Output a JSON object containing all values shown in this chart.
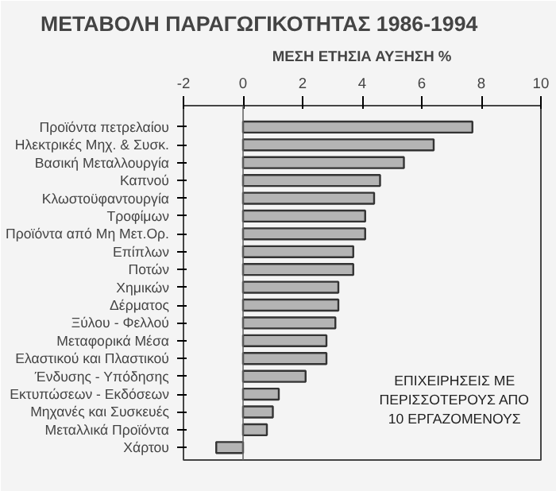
{
  "chart_data": {
    "type": "bar",
    "orientation": "horizontal",
    "title": "ΜΕΤΑΒΟΛΗ ΠΑΡΑΓΩΓΙΚΟΤΗΤΑΣ 1986-1994",
    "xlabel": "ΜΕΣΗ ΕΤΗΣΙΑ ΑΥΞΗΣΗ %",
    "categories": [
      "Προϊόντα πετρελαίου",
      "Ηλεκτρικές Μηχ. & Συσκ.",
      "Βασική Μεταλλουργία",
      "Καπνού",
      "Κλωστοϋφαντουργία",
      "Τροφίμων",
      "Προϊόντα από Μη Μετ.Ορ.",
      "Επίπλων",
      "Ποτών",
      "Χημικών",
      "Δέρματος",
      "Ξύλου - Φελλού",
      "Μεταφορικά Μέσα",
      "Ελαστικού και Πλαστικού",
      "Ένδυσης - Υπόδησης",
      "Εκτυπώσεων - Εκδόσεων",
      "Μηχανές και Συσκευές",
      "Μεταλλικά Προϊόντα",
      "Χάρτου"
    ],
    "values": [
      7.7,
      6.4,
      5.4,
      4.6,
      4.4,
      4.1,
      4.1,
      3.7,
      3.7,
      3.2,
      3.2,
      3.1,
      2.8,
      2.8,
      2.1,
      1.2,
      1.0,
      0.8,
      -0.9
    ],
    "color": "#b4b4b4",
    "xlim": [
      -2,
      10
    ],
    "xticks": [
      -2,
      0,
      2,
      4,
      6,
      8,
      10
    ],
    "grid": false,
    "ref_lines": [
      {
        "axis": "x",
        "value": 0,
        "color": "#666666"
      }
    ],
    "annotations": [
      {
        "text": "ΕΠΙΧΕΙΡΗΣΕΙΣ ΜΕ\nΠΕΡΙΣΣΟΤΕΡΟΥΣ ΑΠΟ\n10 ΕΡΓΑΖΟΜΕΝΟΥΣ"
      }
    ]
  }
}
